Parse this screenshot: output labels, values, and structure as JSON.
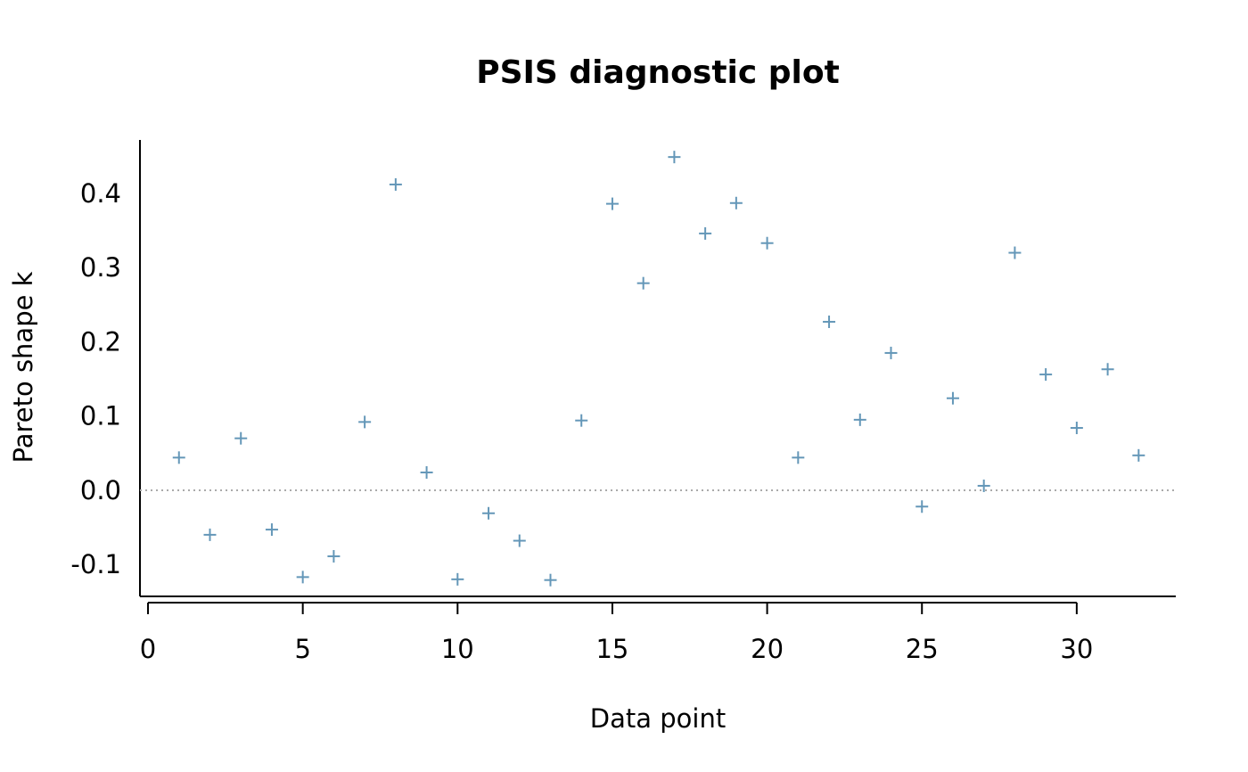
{
  "chart_data": {
    "type": "scatter",
    "title": "PSIS diagnostic plot",
    "xlabel": "Data point",
    "ylabel": "Pareto shape k",
    "x": [
      1,
      2,
      3,
      4,
      5,
      6,
      7,
      8,
      9,
      10,
      11,
      12,
      13,
      14,
      15,
      16,
      17,
      18,
      19,
      20,
      21,
      22,
      23,
      24,
      25,
      26,
      27,
      28,
      29,
      30,
      31,
      32
    ],
    "y": [
      0.044,
      -0.06,
      0.07,
      -0.053,
      -0.117,
      -0.089,
      0.092,
      0.412,
      0.024,
      -0.12,
      -0.031,
      -0.068,
      -0.121,
      0.094,
      0.386,
      0.279,
      0.449,
      0.346,
      0.387,
      0.333,
      0.044,
      0.227,
      0.095,
      0.185,
      -0.022,
      0.124,
      0.006,
      0.32,
      0.156,
      0.084,
      0.163,
      0.047
    ],
    "xlim": [
      -0.26,
      33.2
    ],
    "ylim": [
      -0.143,
      0.472
    ],
    "xticks": [
      0,
      5,
      10,
      15,
      20,
      25,
      30
    ],
    "xtick_labels": [
      "0",
      "5",
      "10",
      "15",
      "20",
      "25",
      "30"
    ],
    "yticks": [
      -0.1,
      0,
      0.1,
      0.2,
      0.3,
      0.4
    ],
    "ytick_labels": [
      "-0.1",
      "0.0",
      "0.1",
      "0.2",
      "0.3",
      "0.4"
    ],
    "reference_line": 0,
    "marker": "+",
    "point_color": "#6497b8",
    "refline_color": "#aaaaaa",
    "grid": false
  }
}
